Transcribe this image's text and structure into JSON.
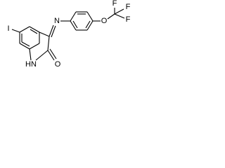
{
  "atoms": [
    {
      "label": "I"
    },
    {
      "label": "N"
    },
    {
      "label": "O"
    },
    {
      "label": "F"
    },
    {
      "label": "F"
    },
    {
      "label": "F"
    },
    {
      "label": "HN"
    },
    {
      "label": "O"
    }
  ]
}
